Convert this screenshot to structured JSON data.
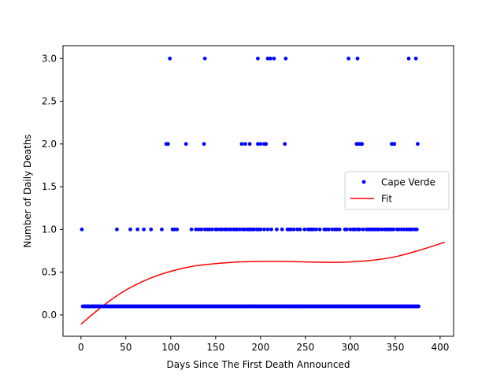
{
  "chart_data": {
    "type": "scatter",
    "title": "",
    "xlabel": "Days Since The First Death Announced",
    "ylabel": "Number of Daily Deaths",
    "xlim": [
      -20,
      415
    ],
    "ylim": [
      -0.25,
      3.15
    ],
    "xticks": [
      0,
      50,
      100,
      150,
      200,
      250,
      300,
      350,
      400
    ],
    "yticks": [
      0.0,
      0.5,
      1.0,
      1.5,
      2.0,
      2.5,
      3.0
    ],
    "legend_position": "center right",
    "series": [
      {
        "name": "Cape Verde",
        "type": "scatter",
        "color": "#0000ff",
        "x": [
          1,
          40,
          55,
          63,
          70,
          78,
          90,
          102,
          104,
          107,
          123,
          128,
          131,
          134,
          138,
          141,
          143,
          146,
          150,
          152,
          155,
          157,
          160,
          162,
          165,
          167,
          170,
          172,
          174,
          177,
          180,
          182,
          185,
          187,
          189,
          191,
          193,
          196,
          198,
          200,
          204,
          208,
          212,
          218,
          224,
          230,
          232,
          234,
          237,
          241,
          244,
          249,
          253,
          255,
          257,
          259,
          262,
          266,
          271,
          273,
          276,
          280,
          283,
          285,
          288,
          294,
          296,
          300,
          303,
          305,
          308,
          310,
          314,
          318,
          320,
          322,
          324,
          326,
          328,
          330,
          332,
          335,
          338,
          340,
          342,
          344,
          346,
          348,
          352,
          354,
          357,
          360,
          363,
          365,
          367,
          369,
          372,
          374,
          95,
          97,
          117,
          137,
          179,
          183,
          188,
          197,
          200,
          204,
          206,
          227,
          307,
          309,
          311,
          313,
          346,
          348,
          349,
          375,
          99,
          138,
          197,
          208,
          211,
          215,
          228,
          298,
          308,
          365,
          373
        ],
        "y": [
          1,
          1,
          1,
          1,
          1,
          1,
          1,
          1,
          1,
          1,
          1,
          1,
          1,
          1,
          1,
          1,
          1,
          1,
          1,
          1,
          1,
          1,
          1,
          1,
          1,
          1,
          1,
          1,
          1,
          1,
          1,
          1,
          1,
          1,
          1,
          1,
          1,
          1,
          1,
          1,
          1,
          1,
          1,
          1,
          1,
          1,
          1,
          1,
          1,
          1,
          1,
          1,
          1,
          1,
          1,
          1,
          1,
          1,
          1,
          1,
          1,
          1,
          1,
          1,
          1,
          1,
          1,
          1,
          1,
          1,
          1,
          1,
          1,
          1,
          1,
          1,
          1,
          1,
          1,
          1,
          1,
          1,
          1,
          1,
          1,
          1,
          1,
          1,
          1,
          1,
          1,
          1,
          1,
          1,
          1,
          1,
          1,
          1,
          2,
          2,
          2,
          2,
          2,
          2,
          2,
          2,
          2,
          2,
          2,
          2,
          2,
          2,
          2,
          2,
          2,
          2,
          2,
          2,
          3,
          3,
          3,
          3,
          3,
          3,
          3,
          3,
          3,
          3,
          3
        ],
        "baseline_x_range": [
          2,
          376
        ],
        "baseline_y": 0.1
      },
      {
        "name": "Fit",
        "type": "line",
        "color": "#ff0000",
        "x": [
          0,
          25,
          50,
          75,
          100,
          125,
          150,
          175,
          200,
          225,
          250,
          275,
          300,
          325,
          350,
          375,
          405
        ],
        "y": [
          -0.11,
          0.11,
          0.29,
          0.42,
          0.51,
          0.57,
          0.6,
          0.62,
          0.625,
          0.625,
          0.62,
          0.615,
          0.62,
          0.64,
          0.68,
          0.75,
          0.85
        ]
      }
    ]
  }
}
